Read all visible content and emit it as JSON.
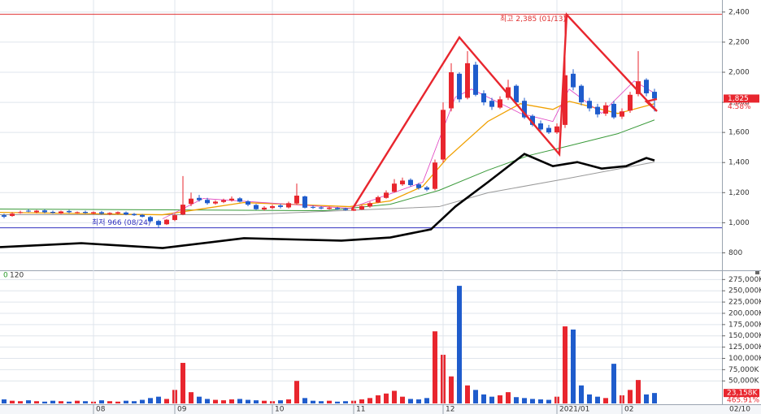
{
  "chart_data": [
    {
      "type": "candlestick",
      "xlim": [
        -0.5,
        88.3
      ],
      "ylim": [
        700,
        2480
      ],
      "yticks": [
        {
          "value": 2400,
          "label": "2,400"
        },
        {
          "value": 2200,
          "label": "2,200"
        },
        {
          "value": 2000,
          "label": "2,000"
        },
        {
          "value": 1800,
          "label": "1,800"
        },
        {
          "value": 1600,
          "label": "1,600"
        },
        {
          "value": 1400,
          "label": "1,400"
        },
        {
          "value": 1200,
          "label": "1,200"
        },
        {
          "value": 1000,
          "label": "1,000"
        },
        800
      ],
      "up_color": "#e8262e",
      "down_color": "#1f5ccc",
      "open": [
        1050,
        1045,
        1065,
        1080,
        1070,
        1082,
        1072,
        1062,
        1078,
        1065,
        1072,
        1062,
        1070,
        1058,
        1062,
        1068,
        1058,
        1052,
        1038,
        1012,
        990,
        1018,
        1055,
        1125,
        1165,
        1152,
        1128,
        1138,
        1148,
        1162,
        1142,
        1118,
        1088,
        1098,
        1115,
        1102,
        1128,
        1175,
        1105,
        1102,
        1092,
        1098,
        1093,
        1080,
        1088,
        1108,
        1135,
        1165,
        1205,
        1255,
        1285,
        1255,
        1235,
        1225,
        1420,
        1760,
        1990,
        1830,
        2050,
        1860,
        1810,
        1765,
        1830,
        1910,
        1810,
        1710,
        1660,
        1630,
        1600,
        1650,
        1990,
        1910,
        1810,
        1770,
        1725,
        1790,
        1705,
        1745,
        1855,
        1950,
        1870
      ],
      "high": [
        1060,
        1070,
        1080,
        1090,
        1085,
        1090,
        1080,
        1080,
        1085,
        1075,
        1080,
        1075,
        1078,
        1070,
        1075,
        1075,
        1065,
        1058,
        1045,
        1020,
        1025,
        1060,
        1310,
        1200,
        1185,
        1165,
        1150,
        1160,
        1175,
        1170,
        1150,
        1125,
        1110,
        1120,
        1125,
        1140,
        1260,
        1180,
        1115,
        1110,
        1108,
        1105,
        1100,
        1095,
        1115,
        1140,
        1180,
        1215,
        1290,
        1300,
        1295,
        1265,
        1245,
        1420,
        1800,
        2060,
        2000,
        2140,
        2070,
        1880,
        1830,
        1840,
        1950,
        1920,
        1830,
        1720,
        1680,
        1650,
        1660,
        2385,
        2020,
        1920,
        1830,
        1790,
        1800,
        1810,
        1760,
        1870,
        2140,
        1960,
        1890
      ],
      "low": [
        1030,
        1040,
        1060,
        1070,
        1062,
        1062,
        1060,
        1058,
        1062,
        1060,
        1060,
        1055,
        1055,
        1050,
        1055,
        1050,
        1045,
        1035,
        1005,
        966,
        985,
        1010,
        1050,
        1110,
        1140,
        1120,
        1120,
        1130,
        1140,
        1135,
        1110,
        1085,
        1080,
        1090,
        1095,
        1095,
        1120,
        1095,
        1092,
        1088,
        1088,
        1085,
        1080,
        1078,
        1085,
        1100,
        1130,
        1160,
        1200,
        1245,
        1240,
        1220,
        1210,
        1215,
        1400,
        1740,
        1800,
        1820,
        1840,
        1780,
        1750,
        1755,
        1815,
        1790,
        1690,
        1640,
        1610,
        1590,
        1590,
        1630,
        1880,
        1780,
        1740,
        1700,
        1710,
        1690,
        1690,
        1730,
        1840,
        1840,
        1740
      ],
      "close": [
        1040,
        1060,
        1070,
        1075,
        1080,
        1070,
        1065,
        1075,
        1070,
        1070,
        1065,
        1070,
        1060,
        1065,
        1070,
        1055,
        1050,
        1040,
        1010,
        985,
        1020,
        1050,
        1120,
        1160,
        1150,
        1130,
        1140,
        1150,
        1160,
        1140,
        1120,
        1090,
        1100,
        1110,
        1105,
        1130,
        1180,
        1100,
        1100,
        1095,
        1100,
        1090,
        1085,
        1090,
        1110,
        1130,
        1170,
        1200,
        1260,
        1280,
        1250,
        1230,
        1220,
        1400,
        1750,
        2000,
        1820,
        2060,
        1850,
        1800,
        1770,
        1820,
        1900,
        1800,
        1700,
        1650,
        1620,
        1600,
        1640,
        1980,
        1900,
        1800,
        1760,
        1720,
        1780,
        1700,
        1740,
        1850,
        1940,
        1860,
        1825
      ],
      "series": [
        {
          "color": "#999999",
          "line_width": 1,
          "x": [
            -0.5,
            29.5,
            53.5,
            59.5,
            69.5,
            80
          ],
          "values": [
            1053,
            1053,
            1107,
            1199,
            1296,
            1403
          ]
        },
        {
          "color": "#3a9a3a",
          "line_width": 1,
          "x": [
            -0.5,
            39.5,
            47.5,
            53.5,
            59.5,
            64.5,
            69.5,
            75.5,
            80
          ],
          "values": [
            1091,
            1080,
            1123,
            1215,
            1349,
            1446,
            1511,
            1592,
            1683
          ]
        },
        {
          "color": "#f0a000",
          "line_width": 1.3,
          "x": [
            -0.5,
            19.5,
            29.5,
            42.5,
            47.5,
            51.5,
            54.5,
            59.5,
            63.5,
            67.5,
            69.5,
            75.5,
            80
          ],
          "values": [
            1069,
            1053,
            1134,
            1107,
            1145,
            1242,
            1430,
            1673,
            1791,
            1753,
            1807,
            1726,
            1791
          ]
        },
        {
          "color": "#e040c0",
          "line_width": 0.8,
          "x": [
            19.5,
            24.5,
            42.5,
            51.5,
            55.5,
            57.5,
            63.5,
            67.5,
            69.5,
            73.5,
            77.5,
            80
          ],
          "values": [
            1026,
            1161,
            1096,
            1269,
            1834,
            1888,
            1727,
            1673,
            1888,
            1727,
            1942,
            1861
          ]
        },
        {
          "color": "#000000",
          "line_width": 2.6,
          "x": [
            -0.5,
            9.5,
            19.5,
            29.5,
            41.5,
            47.5,
            52.5,
            55.5,
            59.5,
            64,
            67.5,
            70.5,
            73.5,
            76.5,
            79,
            80
          ],
          "values": [
            838,
            864,
            832,
            897,
            881,
            902,
            956,
            1107,
            1269,
            1457,
            1376,
            1403,
            1360,
            1376,
            1430,
            1414
          ]
        }
      ],
      "high_line": {
        "value": 2385,
        "label": "최고 2,385 (01/13)",
        "color": "#e03030"
      },
      "low_line": {
        "value": 966,
        "label": "최저 966 (08/24)",
        "color": "#3030c0"
      },
      "last_price": {
        "value": 1825,
        "label": "1,825"
      },
      "change": "4.58%"
    },
    {
      "type": "bar",
      "xlim": [
        -0.5,
        88.3
      ],
      "ylim": [
        0,
        290000
      ],
      "yticks": [
        {
          "value": 275000,
          "label": "275,000K"
        },
        {
          "value": 250000,
          "label": "250,000K"
        },
        {
          "value": 225000,
          "label": "225,000K"
        },
        {
          "value": 200000,
          "label": "200,000K"
        },
        {
          "value": 175000,
          "label": "175,000K"
        },
        {
          "value": 150000,
          "label": "150,000K"
        },
        {
          "value": 125000,
          "label": "125,000K"
        },
        {
          "value": 100000,
          "label": "100,000K"
        },
        {
          "value": 75000,
          "label": "75,000K"
        },
        {
          "value": 50000,
          "label": "50,000K"
        }
      ],
      "values": [
        9000,
        6000,
        5000,
        7000,
        5000,
        4000,
        6000,
        5000,
        4000,
        6000,
        5000,
        4000,
        7000,
        5000,
        4000,
        6000,
        5000,
        8000,
        12000,
        15000,
        10000,
        30000,
        90000,
        25000,
        15000,
        10000,
        8000,
        7000,
        9000,
        10000,
        8000,
        7000,
        6000,
        5000,
        7000,
        9000,
        50000,
        12000,
        6000,
        5000,
        6000,
        4000,
        5000,
        6000,
        9000,
        12000,
        18000,
        22000,
        28000,
        15000,
        10000,
        9000,
        12000,
        160000,
        108000,
        60000,
        261000,
        40000,
        30000,
        20000,
        15000,
        18000,
        25000,
        14000,
        12000,
        10000,
        9000,
        8000,
        15000,
        171000,
        164000,
        40000,
        20000,
        15000,
        12000,
        88000,
        18000,
        30000,
        52000,
        20000,
        23158
      ],
      "header": [
        "0",
        "120"
      ],
      "last_value": {
        "value": 23158,
        "label": "23,158K"
      },
      "ratio": "465.91%",
      "xticks": [
        {
          "value": 11,
          "label": "08"
        },
        {
          "value": 21,
          "label": "09"
        },
        {
          "value": 33,
          "label": "10"
        },
        {
          "value": 43,
          "label": "11"
        },
        {
          "value": 54,
          "label": "12"
        },
        {
          "value": 68,
          "label": "2021/01"
        },
        {
          "value": 76,
          "label": "02"
        }
      ],
      "last_date": "02/10"
    }
  ]
}
